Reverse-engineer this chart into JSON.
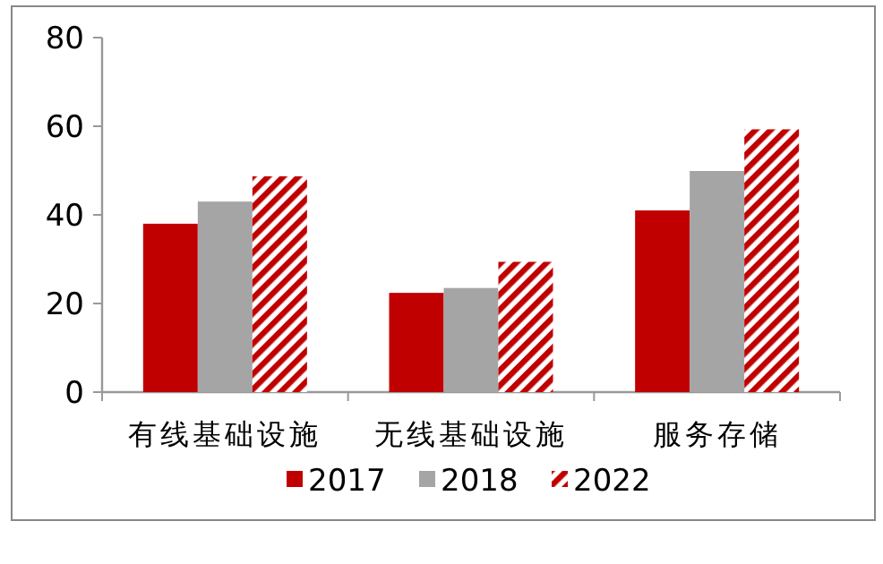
{
  "chart_data": {
    "type": "bar",
    "categories": [
      "有线基础设施",
      "无线基础设施",
      "服务存储"
    ],
    "series": [
      {
        "name": "2017",
        "color": "#c00000",
        "values": [
          38.0,
          22.4,
          41.0
        ]
      },
      {
        "name": "2018",
        "color": "#a5a5a5",
        "values": [
          43.0,
          23.5,
          49.9
        ]
      },
      {
        "name": "2022",
        "color": "#c00000",
        "values": [
          48.7,
          29.4,
          59.3
        ]
      }
    ],
    "ylim": [
      0,
      80
    ],
    "yticks": [
      0,
      20,
      40,
      60,
      80
    ],
    "grid": false,
    "legend": "bottom"
  }
}
